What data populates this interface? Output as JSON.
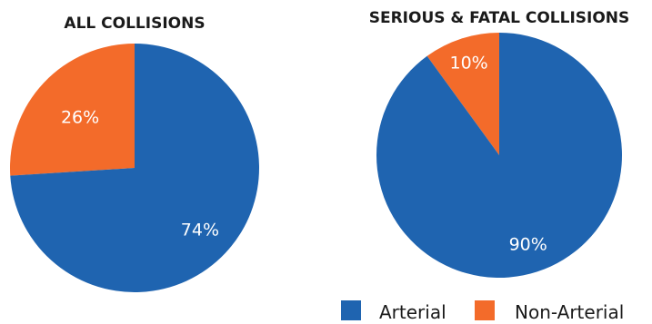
{
  "chart_data": [
    {
      "type": "pie",
      "title": "ALL COLLISIONS",
      "categories": [
        "Arterial",
        "Non-Arterial"
      ],
      "values": [
        74,
        26
      ],
      "labels": [
        "74%",
        "26%"
      ]
    },
    {
      "type": "pie",
      "title": "SERIOUS & FATAL COLLISIONS",
      "categories": [
        "Arterial",
        "Non-Arterial"
      ],
      "values": [
        90,
        10
      ],
      "labels": [
        "90%",
        "10%"
      ]
    }
  ],
  "legend": {
    "placement": "bottom-right",
    "items": [
      {
        "label": "Arterial",
        "color": "#1f64b0"
      },
      {
        "label": "Non-Arterial",
        "color": "#f36b2a"
      }
    ]
  },
  "colors": {
    "arterial": "#1f64b0",
    "non_arterial": "#f36b2a"
  }
}
